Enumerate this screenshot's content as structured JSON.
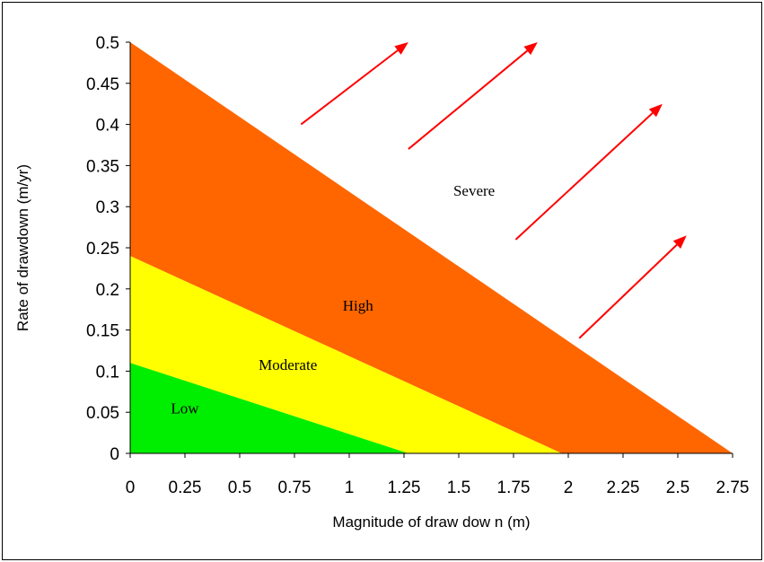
{
  "chart_data": {
    "type": "area",
    "title": "",
    "xlabel": "Magnitude of draw dow n (m)",
    "ylabel": "Rate of drawdown (m/yr)",
    "xlim": [
      0,
      2.75
    ],
    "ylim": [
      0,
      0.5
    ],
    "x_ticks": [
      "0",
      "0.25",
      "0.5",
      "0.75",
      "1",
      "1.25",
      "1.5",
      "1.75",
      "2",
      "2.25",
      "2.5",
      "2.75"
    ],
    "y_ticks": [
      "0",
      "0.05",
      "0.1",
      "0.15",
      "0.2",
      "0.25",
      "0.3",
      "0.35",
      "0.4",
      "0.45",
      "0.5"
    ],
    "grid": false,
    "zones": [
      {
        "label": "Severe",
        "color": "#ffffff",
        "boundary": "above line from (0, 0.5) to (2.75, 0)",
        "label_at": [
          1.57,
          0.32
        ]
      },
      {
        "label": "High",
        "color": "#ff6600",
        "polygon": [
          [
            0,
            0.5
          ],
          [
            2.75,
            0
          ],
          [
            1.97,
            0
          ],
          [
            0,
            0.24
          ]
        ],
        "label_at": [
          1.04,
          0.18
        ]
      },
      {
        "label": "Moderate",
        "color": "#ffff00",
        "polygon": [
          [
            0,
            0.24
          ],
          [
            1.97,
            0
          ],
          [
            1.27,
            0
          ],
          [
            0,
            0.11
          ]
        ],
        "label_at": [
          0.72,
          0.108
        ]
      },
      {
        "label": "Low",
        "color": "#00ee00",
        "polygon": [
          [
            0,
            0.11
          ],
          [
            1.27,
            0
          ],
          [
            0,
            0
          ]
        ],
        "label_at": [
          0.25,
          0.055
        ]
      }
    ],
    "arrows": {
      "color": "#ff0000",
      "segments": [
        [
          [
            0.78,
            0.4
          ],
          [
            1.27,
            0.5
          ]
        ],
        [
          [
            1.27,
            0.37
          ],
          [
            1.86,
            0.5
          ]
        ],
        [
          [
            1.76,
            0.26
          ],
          [
            2.43,
            0.425
          ]
        ],
        [
          [
            2.05,
            0.14
          ],
          [
            2.54,
            0.265
          ]
        ]
      ]
    }
  }
}
